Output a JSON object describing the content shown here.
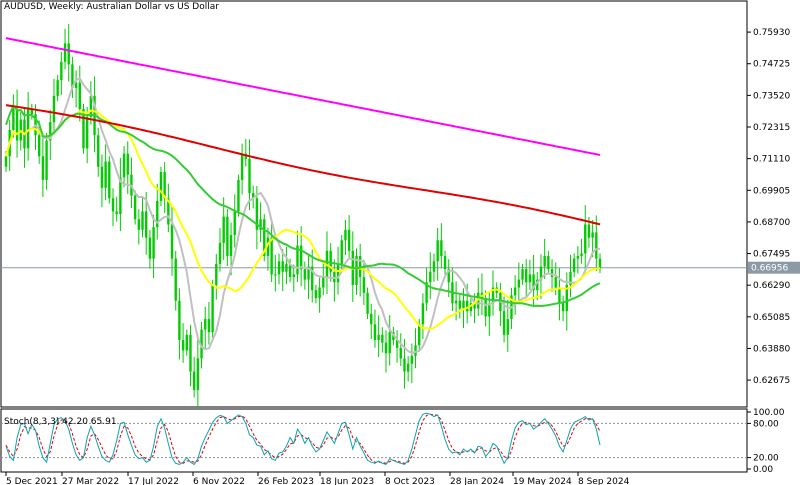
{
  "header": {
    "title": "AUDUSD, Weekly:  Australian Dollar vs US Dollar"
  },
  "price_badge": "0.66956",
  "oscillator_label": "Stoch(8,3,3) 42.20 65.91",
  "colors": {
    "up_candle": "#00cc00",
    "down_candle": "#00cc00",
    "ma_magenta": "#ff00ff",
    "ma_red": "#e00000",
    "ma_green": "#33cc33",
    "ma_yellow": "#ffff00",
    "ma_gray": "#c0c0c0",
    "stoch_main": "#0ba3b3",
    "stoch_signal": "#e00000",
    "current_line": "#8c9aa8",
    "badge_bg": "#8c9aa8"
  },
  "chart_data": [
    {
      "type": "candlestick",
      "title": "AUDUSD, Weekly:  Australian Dollar vs US Dollar",
      "ylim": [
        0.6165,
        0.77
      ],
      "y_ticks": [
        "0.75930",
        "0.74725",
        "0.73520",
        "0.72315",
        "0.71110",
        "0.69905",
        "0.68700",
        "0.67495",
        "0.66290",
        "0.65085",
        "0.63880",
        "0.62675"
      ],
      "x_ticks": [
        "5 Dec 2021",
        "27 Mar 2022",
        "17 Jul 2022",
        "6 Nov 2022",
        "26 Feb 2023",
        "18 Jun 2023",
        "8 Oct 2023",
        "28 Jan 2024",
        "19 May 2024",
        "8 Sep 2024"
      ],
      "current_price": 0.66956,
      "closes": [
        0.712,
        0.722,
        0.73,
        0.718,
        0.726,
        0.715,
        0.73,
        0.728,
        0.72,
        0.712,
        0.703,
        0.718,
        0.725,
        0.735,
        0.741,
        0.748,
        0.755,
        0.747,
        0.738,
        0.74,
        0.73,
        0.715,
        0.727,
        0.735,
        0.72,
        0.708,
        0.7,
        0.71,
        0.696,
        0.691,
        0.69,
        0.704,
        0.713,
        0.705,
        0.697,
        0.688,
        0.684,
        0.691,
        0.681,
        0.673,
        0.685,
        0.695,
        0.706,
        0.696,
        0.686,
        0.673,
        0.657,
        0.642,
        0.638,
        0.644,
        0.63,
        0.623,
        0.635,
        0.646,
        0.65,
        0.645,
        0.663,
        0.671,
        0.679,
        0.689,
        0.674,
        0.682,
        0.691,
        0.703,
        0.713,
        0.711,
        0.698,
        0.696,
        0.684,
        0.688,
        0.674,
        0.681,
        0.667,
        0.667,
        0.672,
        0.668,
        0.671,
        0.666,
        0.667,
        0.678,
        0.669,
        0.665,
        0.67,
        0.661,
        0.658,
        0.662,
        0.666,
        0.676,
        0.668,
        0.664,
        0.671,
        0.68,
        0.684,
        0.676,
        0.663,
        0.674,
        0.666,
        0.66,
        0.652,
        0.648,
        0.642,
        0.644,
        0.641,
        0.637,
        0.645,
        0.642,
        0.639,
        0.635,
        0.63,
        0.633,
        0.636,
        0.64,
        0.648,
        0.656,
        0.664,
        0.668,
        0.672,
        0.68,
        0.674,
        0.669,
        0.664,
        0.656,
        0.657,
        0.654,
        0.657,
        0.653,
        0.656,
        0.654,
        0.66,
        0.658,
        0.651,
        0.656,
        0.662,
        0.66,
        0.653,
        0.644,
        0.65,
        0.659,
        0.662,
        0.665,
        0.669,
        0.664,
        0.667,
        0.661,
        0.665,
        0.67,
        0.674,
        0.669,
        0.666,
        0.662,
        0.656,
        0.653,
        0.663,
        0.668,
        0.673,
        0.674,
        0.675,
        0.686,
        0.681,
        0.683,
        0.673,
        0.6695
      ]
    },
    {
      "type": "line",
      "title": "Stoch(8,3,3) 42.20 65.91",
      "ylim": [
        0,
        100
      ],
      "y_ticks": [
        "100.00",
        "80.00",
        "20.00",
        "0.00"
      ],
      "levels": [
        80,
        20
      ],
      "series": [
        {
          "name": "Stoch(8,3,3)",
          "values": [
            40,
            22,
            15,
            55,
            78,
            80,
            62,
            78,
            68,
            40,
            20,
            12,
            45,
            78,
            88,
            90,
            85,
            70,
            45,
            25,
            15,
            20,
            55,
            75,
            60,
            40,
            22,
            15,
            12,
            25,
            50,
            80,
            82,
            60,
            42,
            25,
            18,
            20,
            12,
            15,
            40,
            75,
            88,
            72,
            45,
            20,
            10,
            8,
            12,
            20,
            12,
            8,
            18,
            40,
            55,
            68,
            82,
            90,
            94,
            92,
            80,
            85,
            90,
            95,
            92,
            80,
            60,
            55,
            42,
            40,
            25,
            32,
            18,
            15,
            28,
            30,
            40,
            55,
            45,
            70,
            60,
            45,
            55,
            40,
            30,
            35,
            50,
            65,
            55,
            45,
            62,
            80,
            82,
            60,
            35,
            55,
            40,
            28,
            15,
            12,
            10,
            14,
            10,
            8,
            18,
            15,
            12,
            10,
            8,
            15,
            35,
            60,
            85,
            96,
            98,
            96,
            92,
            95,
            75,
            52,
            35,
            28,
            30,
            25,
            35,
            30,
            35,
            28,
            40,
            38,
            22,
            30,
            45,
            40,
            25,
            10,
            20,
            50,
            72,
            82,
            85,
            78,
            80,
            70,
            75,
            82,
            88,
            80,
            70,
            58,
            40,
            30,
            50,
            70,
            82,
            85,
            88,
            92,
            86,
            88,
            70,
            42
          ]
        },
        {
          "name": "signal",
          "values": [
            42,
            30,
            22,
            35,
            60,
            74,
            72,
            72,
            68,
            55,
            35,
            22,
            30,
            58,
            78,
            86,
            86,
            80,
            62,
            40,
            25,
            20,
            35,
            58,
            62,
            52,
            38,
            25,
            18,
            18,
            32,
            58,
            75,
            72,
            58,
            40,
            28,
            22,
            18,
            16,
            25,
            50,
            72,
            78,
            66,
            42,
            22,
            12,
            10,
            14,
            14,
            12,
            14,
            25,
            42,
            56,
            70,
            82,
            90,
            92,
            88,
            86,
            88,
            92,
            93,
            88,
            75,
            62,
            50,
            44,
            34,
            30,
            24,
            20,
            22,
            26,
            34,
            44,
            46,
            58,
            60,
            55,
            52,
            46,
            38,
            36,
            42,
            54,
            56,
            52,
            56,
            68,
            76,
            72,
            55,
            48,
            45,
            35,
            24,
            16,
            12,
            12,
            12,
            10,
            13,
            15,
            14,
            12,
            10,
            12,
            22,
            42,
            65,
            85,
            94,
            96,
            95,
            94,
            86,
            68,
            50,
            36,
            30,
            28,
            30,
            31,
            32,
            30,
            35,
            37,
            32,
            30,
            35,
            38,
            32,
            22,
            18,
            32,
            55,
            72,
            80,
            82,
            80,
            76,
            75,
            78,
            82,
            82,
            76,
            66,
            52,
            40,
            42,
            56,
            72,
            80,
            84,
            88,
            88,
            88,
            78,
            66
          ]
        }
      ]
    }
  ]
}
